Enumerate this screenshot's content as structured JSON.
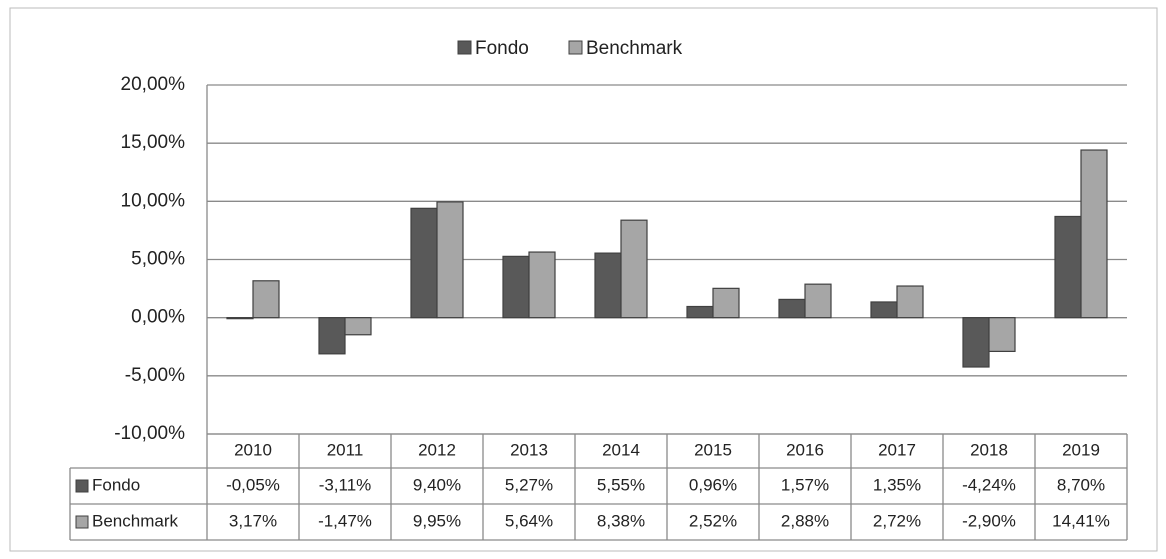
{
  "chart_data": {
    "type": "bar",
    "categories": [
      "2010",
      "2011",
      "2012",
      "2013",
      "2014",
      "2015",
      "2016",
      "2017",
      "2018",
      "2019"
    ],
    "series": [
      {
        "name": "Fondo",
        "color": "#595959",
        "values": [
          -0.05,
          -3.11,
          9.4,
          5.27,
          5.55,
          0.96,
          1.57,
          1.35,
          -4.24,
          8.7
        ],
        "value_labels": [
          "-0,05%",
          "-3,11%",
          "9,40%",
          "5,27%",
          "5,55%",
          "0,96%",
          "1,57%",
          "1,35%",
          "-4,24%",
          "8,70%"
        ]
      },
      {
        "name": "Benchmark",
        "color": "#a6a6a6",
        "values": [
          3.17,
          -1.47,
          9.95,
          5.64,
          8.38,
          2.52,
          2.88,
          2.72,
          -2.9,
          14.41
        ],
        "value_labels": [
          "3,17%",
          "-1,47%",
          "9,95%",
          "5,64%",
          "8,38%",
          "2,52%",
          "2,88%",
          "2,72%",
          "-2,90%",
          "14,41%"
        ]
      }
    ],
    "ylim": [
      -10,
      20
    ],
    "yticks": [
      {
        "value": -10,
        "label": "-10,00%"
      },
      {
        "value": -5,
        "label": "-5,00%"
      },
      {
        "value": 0,
        "label": "0,00%"
      },
      {
        "value": 5,
        "label": "5,00%"
      },
      {
        "value": 10,
        "label": "10,00%"
      },
      {
        "value": 15,
        "label": "15,00%"
      },
      {
        "value": 20,
        "label": "20,00%"
      }
    ],
    "grid": true,
    "legend": "top"
  }
}
